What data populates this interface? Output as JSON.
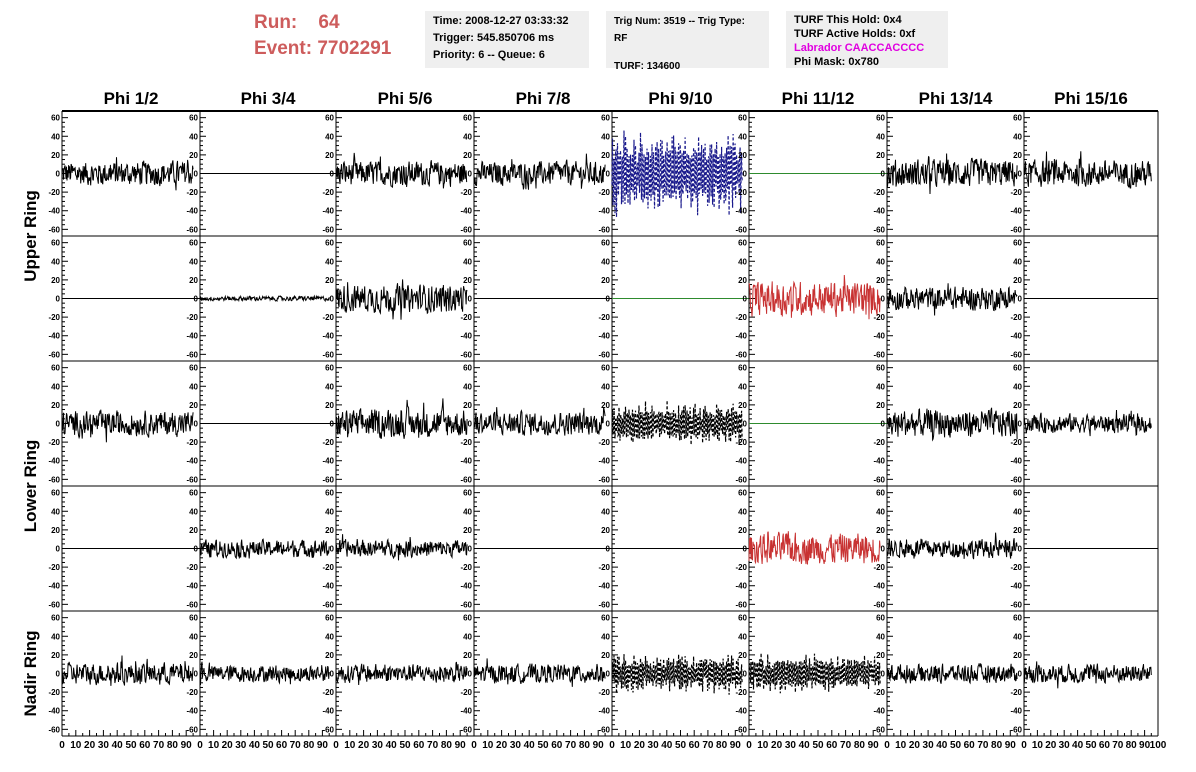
{
  "header": {
    "run_label": "Run:",
    "run_value": "64",
    "event_label": "Event:",
    "event_value": "7702291",
    "time": "Time: 2008-12-27 03:33:32",
    "trigger": "Trigger: 545.850706 ms",
    "priority": "Priority: 6 -- Queue: 6",
    "trig_num": "Trig Num: 3519 -- Trig Type: RF",
    "turf": "TURF: 134600",
    "turf_this_hold": "TURF This Hold: 0x4",
    "turf_active_holds": "TURF Active Holds: 0xf",
    "labrador": "Labrador CAACCACCCC",
    "phi_mask": "Phi Mask: 0x780"
  },
  "colors": {
    "header_red": "#cd5c5c",
    "labrador_magenta": "#e000e0",
    "trace_black": "#000000",
    "trace_blue": "#1a1a8c",
    "trace_green": "#2e8b2e",
    "trace_red": "#c83232"
  },
  "chart_data": {
    "type": "line",
    "columns": [
      "Phi 1/2",
      "Phi 3/4",
      "Phi 5/6",
      "Phi 7/8",
      "Phi 9/10",
      "Phi 11/12",
      "Phi 13/14",
      "Phi 15/16"
    ],
    "ring_labels": [
      {
        "label": "Upper Ring",
        "rows": [
          0,
          1
        ]
      },
      {
        "label": "Lower Ring",
        "rows": [
          2,
          3
        ]
      },
      {
        "label": "Nadir Ring",
        "rows": [
          4
        ]
      }
    ],
    "y_ticks": [
      60,
      40,
      20,
      0,
      -20,
      -40,
      -60
    ],
    "ylim": [
      -65,
      65
    ],
    "xlim": [
      0,
      100
    ],
    "x_ticks_last_column": [
      0,
      10,
      20,
      30,
      40,
      50,
      60,
      70,
      80,
      90,
      100
    ],
    "x_ticks_other_columns": [
      0,
      10,
      20,
      30,
      40,
      50,
      60,
      70,
      80,
      90
    ],
    "trace_x_end": 95,
    "panels": [
      [
        "noise:16:black",
        "flat:0:black",
        "noise:16:black",
        "noise:15:black",
        "dash:40:blue",
        "flat:0:green",
        "noise:18:black",
        "noise:17:black"
      ],
      [
        "flat:0:black",
        "noise:3:black",
        "noise:18:black",
        "flat:0:black",
        "flat:0:green",
        "noise:22:red",
        "noise:15:black",
        "flat:0:black"
      ],
      [
        "noise:16:black",
        "flat:0:black",
        "noise:18:black",
        "noise:15:black",
        "dash:20:black",
        "flat:0:green",
        "noise:18:black",
        "noise:12:black"
      ],
      [
        "flat:0:black",
        "noise:11:black",
        "noise:11:black",
        "flat:0:black",
        "flat:0:black",
        "noise:20:red",
        "noise:12:black",
        "flat:0:black"
      ],
      [
        "noise:14:black",
        "noise:11:black",
        "noise:12:black",
        "noise:12:black",
        "dash:18:black",
        "dash:18:black",
        "noise:12:black",
        "noise:12:black"
      ]
    ]
  }
}
